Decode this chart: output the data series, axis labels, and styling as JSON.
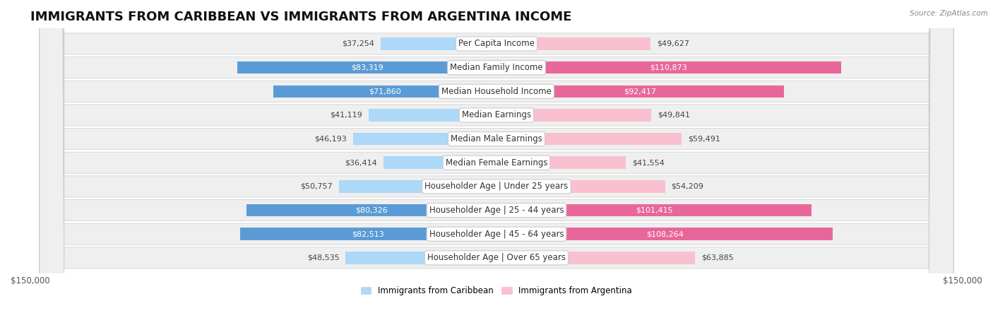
{
  "title": "IMMIGRANTS FROM CARIBBEAN VS IMMIGRANTS FROM ARGENTINA INCOME",
  "source": "Source: ZipAtlas.com",
  "categories": [
    "Per Capita Income",
    "Median Family Income",
    "Median Household Income",
    "Median Earnings",
    "Median Male Earnings",
    "Median Female Earnings",
    "Householder Age | Under 25 years",
    "Householder Age | 25 - 44 years",
    "Householder Age | 45 - 64 years",
    "Householder Age | Over 65 years"
  ],
  "caribbean_values": [
    37254,
    83319,
    71860,
    41119,
    46193,
    36414,
    50757,
    80326,
    82513,
    48535
  ],
  "argentina_values": [
    49627,
    110873,
    92417,
    49841,
    59491,
    41554,
    54209,
    101415,
    108264,
    63885
  ],
  "caribbean_labels": [
    "$37,254",
    "$83,319",
    "$71,860",
    "$41,119",
    "$46,193",
    "$36,414",
    "$50,757",
    "$80,326",
    "$82,513",
    "$48,535"
  ],
  "argentina_labels": [
    "$49,627",
    "$110,873",
    "$92,417",
    "$49,841",
    "$59,491",
    "$41,554",
    "$54,209",
    "$101,415",
    "$108,264",
    "$63,885"
  ],
  "caribbean_colors_light": "#ADD8F7",
  "caribbean_colors_dark": "#5B9BD5",
  "argentina_colors_light": "#F9C0D0",
  "argentina_colors_dark": "#E8679A",
  "caribbean_threshold": 60000,
  "argentina_threshold": 70000,
  "xlim": 150000,
  "row_bg_color": "#EFEFEF",
  "fig_bg_color": "#FFFFFF",
  "legend_caribbean": "Immigrants from Caribbean",
  "legend_argentina": "Immigrants from Argentina",
  "title_fontsize": 13,
  "label_fontsize": 8.5,
  "value_fontsize": 8.0
}
